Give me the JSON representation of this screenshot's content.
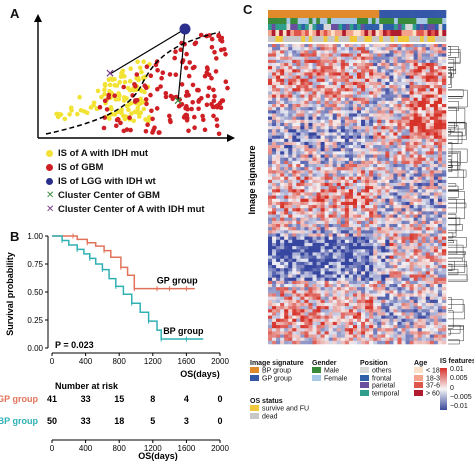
{
  "panels": {
    "a": "A",
    "b": "B",
    "c": "C"
  },
  "panel_a": {
    "legend": [
      {
        "label": "IS of A with IDH mut",
        "marker": "dot",
        "color": "#f2e234"
      },
      {
        "label": "IS of GBM",
        "marker": "dot",
        "color": "#cf1f24"
      },
      {
        "label": "IS of LGG with IDH wt",
        "marker": "dot",
        "color": "#2a2e8c"
      },
      {
        "label": "Cluster Center of GBM",
        "marker": "x",
        "color": "#3a8a3c"
      },
      {
        "label": "Cluster Center of A with IDH mut",
        "marker": "x",
        "color": "#7b3d8c"
      }
    ]
  },
  "panel_b": {
    "ylabel": "Survival probability",
    "xlabel": "OS(days)",
    "pvalue": "P = 0.023",
    "risk_title": "Number at risk",
    "risk_xlabel": "OS(days)",
    "ticks": [
      "0",
      "400",
      "800",
      "1200",
      "1600",
      "2000"
    ]
  },
  "chart_data": {
    "type": "line",
    "title": "",
    "xlabel": "OS(days)",
    "ylabel": "Survival probability",
    "xlim": [
      0,
      2000
    ],
    "ylim": [
      0,
      1
    ],
    "xticks": [
      0,
      400,
      800,
      1200,
      1600,
      2000
    ],
    "yticks": [
      "0.00",
      "0.25",
      "0.50",
      "0.75",
      "1.00"
    ],
    "series": [
      {
        "name": "GP group",
        "color": "#e2735a",
        "x": [
          0,
          250,
          300,
          420,
          520,
          620,
          700,
          820,
          900,
          980,
          1050,
          1250,
          1300,
          1400,
          1500,
          1600,
          1700
        ],
        "y": [
          1.0,
          1.0,
          0.97,
          0.94,
          0.91,
          0.87,
          0.81,
          0.72,
          0.65,
          0.53,
          0.53,
          0.53,
          0.53,
          0.53,
          0.53,
          0.53,
          0.53
        ]
      },
      {
        "name": "BP group",
        "color": "#2fb1b4",
        "x": [
          0,
          120,
          200,
          300,
          380,
          450,
          520,
          600,
          680,
          760,
          850,
          950,
          1050,
          1150,
          1250,
          1300,
          1400,
          1600,
          1800
        ],
        "y": [
          1.0,
          0.96,
          0.92,
          0.88,
          0.84,
          0.8,
          0.75,
          0.7,
          0.62,
          0.55,
          0.48,
          0.4,
          0.32,
          0.24,
          0.16,
          0.08,
          0.08,
          0.08,
          0.08
        ]
      }
    ],
    "at_risk": [
      {
        "group": "GP group",
        "color": "#e2735a",
        "values": [
          "41",
          "33",
          "15",
          "8",
          "4",
          "0"
        ]
      },
      {
        "group": "BP group",
        "color": "#2fb1b4",
        "values": [
          "50",
          "33",
          "18",
          "5",
          "3",
          "0"
        ]
      }
    ]
  },
  "panel_c": {
    "ylabel": "Image signature",
    "legend": {
      "image_signature": {
        "title": "Image signature",
        "items": [
          {
            "label": "BP group",
            "color": "#e08a2b"
          },
          {
            "label": "GP group",
            "color": "#3557a8"
          }
        ]
      },
      "gender": {
        "title": "Gender",
        "items": [
          {
            "label": "Male",
            "color": "#3a8a3c"
          },
          {
            "label": "Female",
            "color": "#a8c8e8"
          }
        ]
      },
      "position": {
        "title": "Position",
        "items": [
          {
            "label": "others",
            "color": "#d8d8d8"
          },
          {
            "label": "frontal",
            "color": "#2f5fa8"
          },
          {
            "label": "parietal",
            "color": "#6a4f9e"
          },
          {
            "label": "temporal",
            "color": "#2f9e8a"
          }
        ]
      },
      "age": {
        "title": "Age",
        "items": [
          {
            "label": "< 18",
            "color": "#fde0c8"
          },
          {
            "label": "18-36",
            "color": "#f4a38c"
          },
          {
            "label": "37-60",
            "color": "#e0554c"
          },
          {
            "label": "> 60",
            "color": "#b01c2e"
          }
        ]
      },
      "os_status": {
        "title": "OS status",
        "items": [
          {
            "label": "survive and FU",
            "color": "#f0c93a"
          },
          {
            "label": "dead",
            "color": "#c8c8c8"
          }
        ]
      },
      "is_features": {
        "title": "IS features",
        "ticks": [
          "0.01",
          "0.005",
          "0",
          "−0.005",
          "−0.01"
        ]
      }
    }
  }
}
